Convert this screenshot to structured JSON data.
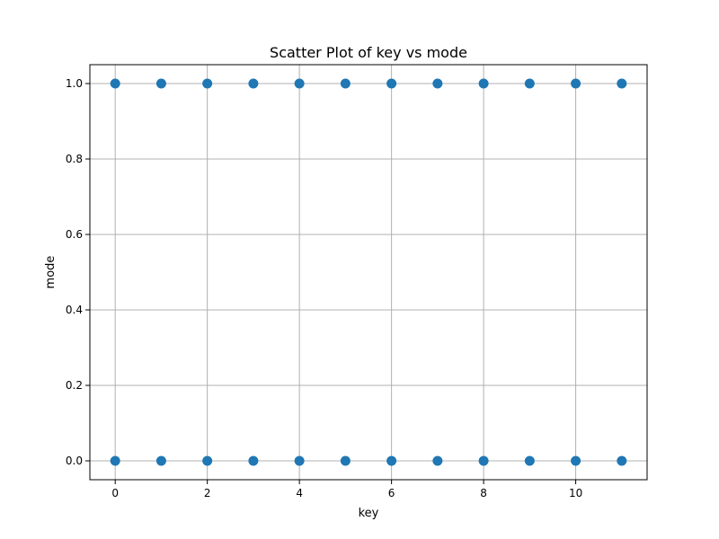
{
  "chart_data": {
    "type": "scatter",
    "title": "Scatter Plot of key vs mode",
    "xlabel": "key",
    "ylabel": "mode",
    "xlim": [
      -0.55,
      11.55
    ],
    "ylim": [
      -0.05,
      1.05
    ],
    "xticks": [
      0,
      2,
      4,
      6,
      8,
      10
    ],
    "xtick_labels": [
      "0",
      "2",
      "4",
      "6",
      "8",
      "10"
    ],
    "yticks": [
      0.0,
      0.2,
      0.4,
      0.6,
      0.8,
      1.0
    ],
    "ytick_labels": [
      "0.0",
      "0.2",
      "0.4",
      "0.6",
      "0.8",
      "1.0"
    ],
    "grid": true,
    "marker_color": "#1f77b4",
    "points": [
      {
        "x": 0,
        "y": 1
      },
      {
        "x": 0,
        "y": 0
      },
      {
        "x": 1,
        "y": 1
      },
      {
        "x": 1,
        "y": 0
      },
      {
        "x": 2,
        "y": 1
      },
      {
        "x": 2,
        "y": 0
      },
      {
        "x": 3,
        "y": 1
      },
      {
        "x": 3,
        "y": 0
      },
      {
        "x": 4,
        "y": 1
      },
      {
        "x": 4,
        "y": 0
      },
      {
        "x": 5,
        "y": 1
      },
      {
        "x": 5,
        "y": 0
      },
      {
        "x": 6,
        "y": 1
      },
      {
        "x": 6,
        "y": 0
      },
      {
        "x": 7,
        "y": 1
      },
      {
        "x": 7,
        "y": 0
      },
      {
        "x": 8,
        "y": 1
      },
      {
        "x": 8,
        "y": 0
      },
      {
        "x": 9,
        "y": 1
      },
      {
        "x": 9,
        "y": 0
      },
      {
        "x": 10,
        "y": 1
      },
      {
        "x": 10,
        "y": 0
      },
      {
        "x": 11,
        "y": 1
      },
      {
        "x": 11,
        "y": 0
      }
    ]
  }
}
